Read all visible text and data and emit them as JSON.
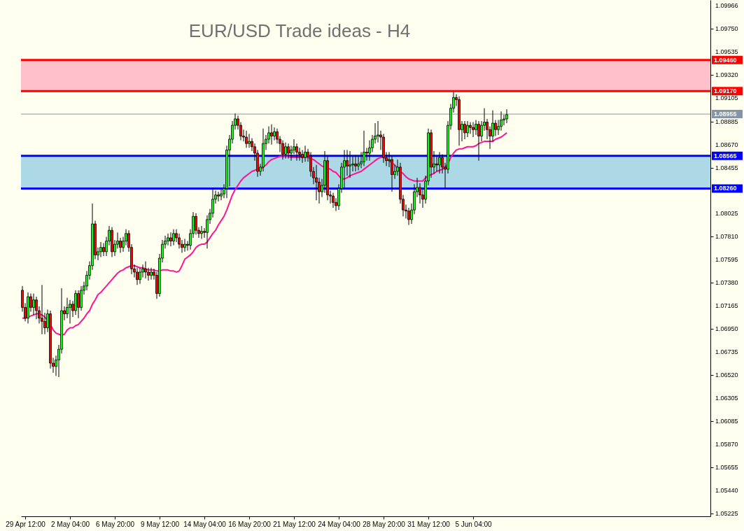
{
  "chart_data": {
    "type": "candlestick",
    "title": "EUR/USD Trade ideas - H4",
    "categories": [
      null,
      "29 Apr 12:00",
      null,
      null,
      null,
      null,
      null,
      null,
      null,
      null,
      null,
      null,
      null,
      null,
      null,
      null,
      null,
      "2 May 04:00",
      null,
      null,
      null,
      null,
      null,
      null,
      null,
      null,
      null,
      null,
      null,
      null,
      null,
      null,
      null,
      "6 May 20:00",
      null,
      null,
      null,
      null,
      null,
      null,
      null,
      null,
      null,
      null,
      null,
      null,
      null,
      null,
      null,
      "9 May 12:00",
      null,
      null,
      null,
      null,
      null,
      null,
      null,
      null,
      null,
      null,
      null,
      null,
      null,
      null,
      null,
      "14 May 04:00",
      null,
      null,
      null,
      null,
      null,
      null,
      null,
      null,
      null,
      null,
      null,
      null,
      null,
      null,
      null,
      "16 May 20:00",
      null,
      null,
      null,
      null,
      null,
      null,
      null,
      null,
      null,
      null,
      null,
      null,
      null,
      null,
      null,
      "21 May 12:00",
      null,
      null,
      null,
      null,
      null,
      null,
      null,
      null,
      null,
      null,
      null,
      null,
      null,
      null,
      null,
      "24 May 04:00",
      null,
      null,
      null,
      null,
      null,
      null,
      null,
      null,
      null,
      null,
      null,
      null,
      null,
      null,
      null,
      "28 May 20:00",
      null,
      null,
      null,
      null,
      null,
      null,
      null,
      null,
      null,
      null,
      null,
      null,
      null,
      null,
      null,
      "31 May 12:00",
      null,
      null,
      null,
      null,
      null,
      null,
      null,
      null,
      null,
      null,
      null,
      null,
      null,
      null,
      null,
      "5 Jun 04:00",
      null,
      null,
      null,
      null,
      null,
      null,
      null,
      null,
      null,
      null,
      null,
      null
    ],
    "ohlc": [
      [
        1.0731,
        1.0735,
        1.0711,
        1.0715
      ],
      [
        1.0715,
        1.0719,
        1.0702,
        1.0705
      ],
      [
        1.0705,
        1.0729,
        1.07,
        1.0725
      ],
      [
        1.0725,
        1.0728,
        1.0711,
        1.0715
      ],
      [
        1.0715,
        1.0728,
        1.0708,
        1.0722
      ],
      [
        1.0722,
        1.0725,
        1.0704,
        1.0712
      ],
      [
        1.0712,
        1.0716,
        1.07,
        1.0705
      ],
      [
        1.0705,
        1.0736,
        1.069,
        1.0702
      ],
      [
        1.0702,
        1.071,
        1.069,
        1.0696
      ],
      [
        1.0696,
        1.0713,
        1.0692,
        1.0709
      ],
      [
        1.0709,
        1.0712,
        1.0658,
        1.0663
      ],
      [
        1.0663,
        1.0668,
        1.0654,
        1.066
      ],
      [
        1.066,
        1.067,
        1.0651,
        1.0666
      ],
      [
        1.0666,
        1.068,
        1.065,
        1.0676
      ],
      [
        1.0676,
        1.0733,
        1.0672,
        1.0712
      ],
      [
        1.0712,
        1.0716,
        1.0703,
        1.0709
      ],
      [
        1.0709,
        1.0724,
        1.0705,
        1.0715
      ],
      [
        1.0715,
        1.0722,
        1.07,
        1.0718
      ],
      [
        1.0718,
        1.0721,
        1.0706,
        1.0712
      ],
      [
        1.0712,
        1.0731,
        1.0708,
        1.0728
      ],
      [
        1.0728,
        1.0731,
        1.0705,
        1.0715
      ],
      [
        1.0715,
        1.0735,
        1.0712,
        1.0731
      ],
      [
        1.0731,
        1.0739,
        1.0727,
        1.0735
      ],
      [
        1.0735,
        1.0749,
        1.0731,
        1.0745
      ],
      [
        1.0745,
        1.0758,
        1.0741,
        1.0754
      ],
      [
        1.0754,
        1.0812,
        1.075,
        1.0793
      ],
      [
        1.0793,
        1.0796,
        1.076,
        1.0764
      ],
      [
        1.0764,
        1.0771,
        1.0759,
        1.0767
      ],
      [
        1.0767,
        1.0776,
        1.0762,
        1.0771
      ],
      [
        1.0771,
        1.0775,
        1.0763,
        1.0767
      ],
      [
        1.0767,
        1.0781,
        1.0763,
        1.0777
      ],
      [
        1.0777,
        1.0791,
        1.0773,
        1.0787
      ],
      [
        1.0787,
        1.079,
        1.0762,
        1.0767
      ],
      [
        1.0767,
        1.0778,
        1.0763,
        1.0774
      ],
      [
        1.0774,
        1.0785,
        1.077,
        1.0777
      ],
      [
        1.0777,
        1.078,
        1.0766,
        1.0771
      ],
      [
        1.0771,
        1.0781,
        1.0767,
        1.0777
      ],
      [
        1.0777,
        1.0788,
        1.0773,
        1.0784
      ],
      [
        1.0784,
        1.0787,
        1.0767,
        1.0771
      ],
      [
        1.0771,
        1.0774,
        1.0746,
        1.0751
      ],
      [
        1.0751,
        1.0755,
        1.0743,
        1.0748
      ],
      [
        1.0748,
        1.0752,
        1.0736,
        1.0741
      ],
      [
        1.0741,
        1.0752,
        1.0737,
        1.0748
      ],
      [
        1.0748,
        1.0755,
        1.0743,
        1.0751
      ],
      [
        1.0751,
        1.0758,
        1.0742,
        1.0748
      ],
      [
        1.0748,
        1.0752,
        1.074,
        1.0745
      ],
      [
        1.0745,
        1.0752,
        1.0741,
        1.0748
      ],
      [
        1.0748,
        1.0751,
        1.0741,
        1.0745
      ],
      [
        1.0745,
        1.0748,
        1.0723,
        1.0728
      ],
      [
        1.0728,
        1.0765,
        1.0725,
        1.0761
      ],
      [
        1.0761,
        1.0778,
        1.0757,
        1.0774
      ],
      [
        1.0774,
        1.0782,
        1.077,
        1.0777
      ],
      [
        1.0777,
        1.0784,
        1.0773,
        1.078
      ],
      [
        1.078,
        1.0785,
        1.0772,
        1.0777
      ],
      [
        1.0777,
        1.0788,
        1.0773,
        1.0784
      ],
      [
        1.0784,
        1.0788,
        1.0776,
        1.078
      ],
      [
        1.078,
        1.0784,
        1.077,
        1.0774
      ],
      [
        1.0774,
        1.0778,
        1.0766,
        1.0771
      ],
      [
        1.0771,
        1.0779,
        1.0767,
        1.0774
      ],
      [
        1.0774,
        1.0777,
        1.0768,
        1.0773
      ],
      [
        1.0773,
        1.0788,
        1.0769,
        1.0784
      ],
      [
        1.0784,
        1.0804,
        1.078,
        1.08
      ],
      [
        1.08,
        1.0803,
        1.0783,
        1.0787
      ],
      [
        1.0787,
        1.079,
        1.078,
        1.0784
      ],
      [
        1.0784,
        1.0791,
        1.0779,
        1.0786
      ],
      [
        1.0786,
        1.0789,
        1.078,
        1.0785
      ],
      [
        1.0785,
        1.0801,
        1.077,
        1.0797
      ],
      [
        1.0797,
        1.0807,
        1.0793,
        1.0803
      ],
      [
        1.0803,
        1.0826,
        1.0799,
        1.0816
      ],
      [
        1.0816,
        1.0824,
        1.0812,
        1.082
      ],
      [
        1.082,
        1.0823,
        1.0814,
        1.0819
      ],
      [
        1.0819,
        1.0825,
        1.0815,
        1.0821
      ],
      [
        1.0821,
        1.083,
        1.0817,
        1.0826
      ],
      [
        1.0826,
        1.0866,
        1.0817,
        1.0862
      ],
      [
        1.0862,
        1.0876,
        1.0828,
        1.0872
      ],
      [
        1.0872,
        1.0889,
        1.0868,
        1.0885
      ],
      [
        1.0885,
        1.0896,
        1.0881,
        1.0891
      ],
      [
        1.0891,
        1.0894,
        1.0881,
        1.0885
      ],
      [
        1.0885,
        1.0888,
        1.0871,
        1.0875
      ],
      [
        1.0875,
        1.0881,
        1.087,
        1.0874
      ],
      [
        1.0874,
        1.088,
        1.0864,
        1.0868
      ],
      [
        1.0868,
        1.0877,
        1.0864,
        1.087
      ],
      [
        1.087,
        1.0873,
        1.0861,
        1.0865
      ],
      [
        1.0865,
        1.0868,
        1.0852,
        1.0859
      ],
      [
        1.0859,
        1.0862,
        1.0837,
        1.0842
      ],
      [
        1.0842,
        1.0849,
        1.0838,
        1.0846
      ],
      [
        1.0846,
        1.0882,
        1.0842,
        1.0868
      ],
      [
        1.0868,
        1.0876,
        1.0862,
        1.0872
      ],
      [
        1.0872,
        1.0884,
        1.0868,
        1.0878
      ],
      [
        1.0878,
        1.0886,
        1.0867,
        1.0875
      ],
      [
        1.0875,
        1.0883,
        1.0871,
        1.0879
      ],
      [
        1.0879,
        1.0882,
        1.0868,
        1.0872
      ],
      [
        1.0872,
        1.0875,
        1.086,
        1.0868
      ],
      [
        1.0868,
        1.0871,
        1.0853,
        1.0858
      ],
      [
        1.0858,
        1.0869,
        1.0854,
        1.0865
      ],
      [
        1.0865,
        1.0868,
        1.0854,
        1.0859
      ],
      [
        1.0859,
        1.0866,
        1.0852,
        1.0862
      ],
      [
        1.0862,
        1.0872,
        1.0858,
        1.0865
      ],
      [
        1.0865,
        1.0868,
        1.0852,
        1.086
      ],
      [
        1.086,
        1.0864,
        1.0852,
        1.0858
      ],
      [
        1.0858,
        1.0862,
        1.085,
        1.0855
      ],
      [
        1.0855,
        1.0866,
        1.0851,
        1.086
      ],
      [
        1.086,
        1.0863,
        1.0851,
        1.0856
      ],
      [
        1.0856,
        1.086,
        1.0837,
        1.0842
      ],
      [
        1.0842,
        1.0846,
        1.083,
        1.0836
      ],
      [
        1.0836,
        1.0848,
        1.0815,
        1.0832
      ],
      [
        1.0832,
        1.0836,
        1.0812,
        1.0823
      ],
      [
        1.0823,
        1.0835,
        1.0818,
        1.0829
      ],
      [
        1.0829,
        1.0861,
        1.0822,
        1.0852
      ],
      [
        1.0852,
        1.0856,
        1.0815,
        1.082
      ],
      [
        1.082,
        1.0824,
        1.0812,
        1.0819
      ],
      [
        1.0819,
        1.0822,
        1.0808,
        1.0813
      ],
      [
        1.0813,
        1.0817,
        1.0805,
        1.081
      ],
      [
        1.081,
        1.083,
        1.0806,
        1.0826
      ],
      [
        1.0826,
        1.085,
        1.0822,
        1.0846
      ],
      [
        1.0846,
        1.0862,
        1.0826,
        1.0852
      ],
      [
        1.0852,
        1.0862,
        1.0838,
        1.0847
      ],
      [
        1.0847,
        1.0861,
        1.0836,
        1.0848
      ],
      [
        1.0848,
        1.0856,
        1.0842,
        1.0849
      ],
      [
        1.0849,
        1.0857,
        1.0842,
        1.0847
      ],
      [
        1.0847,
        1.0856,
        1.0843,
        1.0849
      ],
      [
        1.0849,
        1.086,
        1.0845,
        1.0851
      ],
      [
        1.0851,
        1.088,
        1.0847,
        1.086
      ],
      [
        1.086,
        1.0864,
        1.0852,
        1.0859
      ],
      [
        1.0859,
        1.0871,
        1.0852,
        1.0864
      ],
      [
        1.0864,
        1.0876,
        1.086,
        1.0872
      ],
      [
        1.0872,
        1.0887,
        1.0868,
        1.0875
      ],
      [
        1.0875,
        1.0889,
        1.0869,
        1.0876
      ],
      [
        1.0876,
        1.088,
        1.0862,
        1.0874
      ],
      [
        1.0874,
        1.0877,
        1.085,
        1.0855
      ],
      [
        1.0855,
        1.086,
        1.0847,
        1.0852
      ],
      [
        1.0852,
        1.086,
        1.0846,
        1.0853
      ],
      [
        1.0853,
        1.0856,
        1.0823,
        1.0839
      ],
      [
        1.0839,
        1.0848,
        1.0835,
        1.0842
      ],
      [
        1.0842,
        1.0853,
        1.0838,
        1.0846
      ],
      [
        1.0846,
        1.085,
        1.0812,
        1.0816
      ],
      [
        1.0816,
        1.082,
        1.08,
        1.0806
      ],
      [
        1.0806,
        1.0811,
        1.0798,
        1.0805
      ],
      [
        1.0805,
        1.0808,
        1.0792,
        1.0797
      ],
      [
        1.0797,
        1.0812,
        1.0793,
        1.0806
      ],
      [
        1.0806,
        1.083,
        1.0802,
        1.0823
      ],
      [
        1.0823,
        1.0836,
        1.0818,
        1.0827
      ],
      [
        1.0827,
        1.0831,
        1.0812,
        1.082
      ],
      [
        1.082,
        1.0826,
        1.0808,
        1.0816
      ],
      [
        1.0816,
        1.0838,
        1.0812,
        1.0833
      ],
      [
        1.0833,
        1.0882,
        1.0829,
        1.0878
      ],
      [
        1.0878,
        1.0881,
        1.0836,
        1.0846
      ],
      [
        1.0846,
        1.0861,
        1.084,
        1.0849
      ],
      [
        1.0849,
        1.0856,
        1.0842,
        1.0848
      ],
      [
        1.0848,
        1.086,
        1.084,
        1.0855
      ],
      [
        1.0855,
        1.0858,
        1.084,
        1.0846
      ],
      [
        1.0846,
        1.085,
        1.0826,
        1.0844
      ],
      [
        1.0844,
        1.0889,
        1.084,
        1.0885
      ],
      [
        1.0885,
        1.0905,
        1.0881,
        1.0901
      ],
      [
        1.0901,
        1.0916,
        1.0897,
        1.0911
      ],
      [
        1.0911,
        1.0914,
        1.0903,
        1.0909
      ],
      [
        1.0909,
        1.0912,
        1.0866,
        1.0881
      ],
      [
        1.0881,
        1.0889,
        1.087,
        1.0886
      ],
      [
        1.0886,
        1.0889,
        1.0872,
        1.0878
      ],
      [
        1.0878,
        1.0889,
        1.0874,
        1.0885
      ],
      [
        1.0885,
        1.0888,
        1.0877,
        1.0883
      ],
      [
        1.0883,
        1.0888,
        1.0874,
        1.0881
      ],
      [
        1.0881,
        1.089,
        1.0876,
        1.0886
      ],
      [
        1.0886,
        1.0889,
        1.0852,
        1.0875
      ],
      [
        1.0875,
        1.0889,
        1.087,
        1.0885
      ],
      [
        1.0885,
        1.0901,
        1.088,
        1.0888
      ],
      [
        1.0888,
        1.0891,
        1.0872,
        1.0881
      ],
      [
        1.0881,
        1.0884,
        1.0863,
        1.0875
      ],
      [
        1.0875,
        1.0899,
        1.087,
        1.0887
      ],
      [
        1.0887,
        1.089,
        1.0875,
        1.0881
      ],
      [
        1.0881,
        1.089,
        1.0876,
        1.0884
      ],
      [
        1.0884,
        1.0898,
        1.088,
        1.089
      ],
      [
        1.089,
        1.0895,
        1.0885,
        1.0891
      ],
      [
        1.0891,
        1.09,
        1.0887,
        1.0895
      ]
    ],
    "colors": [
      "#ff0000",
      "#ff0000",
      "#00ff00",
      "#ff0000",
      "#00ff00",
      "#ff0000",
      "#ff0000",
      "#ff0000",
      "#ff0000",
      "#00ff00",
      "#ff0000",
      "#ff0000",
      "#00ff00",
      "#00ff00",
      "#00ff00",
      "#ff0000",
      "#00ff00",
      "#00ff00",
      "#ff0000",
      "#00ff00",
      "#ff0000",
      "#00ff00",
      "#00ff00",
      "#00ff00",
      "#00ff00",
      "#00ff00",
      "#ff0000",
      "#00ff00",
      "#00ff00",
      "#ff0000",
      "#00ff00",
      "#00ff00",
      "#ff0000",
      "#00ff00",
      "#00ff00",
      "#ff0000",
      "#00ff00",
      "#00ff00",
      "#ff0000",
      "#ff0000",
      "#ff0000",
      "#ff0000",
      "#00ff00",
      "#00ff00",
      "#ff0000",
      "#ff0000",
      "#00ff00",
      "#ff0000",
      "#ff0000",
      "#00ff00",
      "#00ff00",
      "#00ff00",
      "#00ff00",
      "#ff0000",
      "#00ff00",
      "#ff0000",
      "#ff0000",
      "#ff0000",
      "#00ff00",
      "#ff0000",
      "#00ff00",
      "#00ff00",
      "#ff0000",
      "#ff0000",
      "#00ff00",
      "#ff0000",
      "#00ff00",
      "#00ff00",
      "#00ff00",
      "#00ff00",
      "#ff0000",
      "#00ff00",
      "#00ff00",
      "#00ff00",
      "#00ff00",
      "#00ff00",
      "#00ff00",
      "#ff0000",
      "#ff0000",
      "#ff0000",
      "#ff0000",
      "#00ff00",
      "#ff0000",
      "#ff0000",
      "#ff0000",
      "#00ff00",
      "#00ff00",
      "#00ff00",
      "#00ff00",
      "#ff0000",
      "#00ff00",
      "#ff0000",
      "#ff0000",
      "#ff0000",
      "#00ff00",
      "#ff0000",
      "#00ff00",
      "#00ff00",
      "#ff0000",
      "#ff0000",
      "#ff0000",
      "#00ff00",
      "#ff0000",
      "#ff0000",
      "#ff0000",
      "#ff0000",
      "#ff0000",
      "#00ff00",
      "#00ff00",
      "#ff0000",
      "#ff0000",
      "#ff0000",
      "#ff0000",
      "#00ff00",
      "#00ff00",
      "#00ff00",
      "#ff0000",
      "#00ff00",
      "#00ff00",
      "#ff0000",
      "#00ff00",
      "#00ff00",
      "#00ff00",
      "#ff0000",
      "#00ff00",
      "#00ff00",
      "#00ff00",
      "#00ff00",
      "#ff0000",
      "#ff0000",
      "#ff0000",
      "#00ff00",
      "#ff0000",
      "#00ff00",
      "#00ff00",
      "#ff0000",
      "#ff0000",
      "#ff0000",
      "#ff0000",
      "#00ff00",
      "#00ff00",
      "#00ff00",
      "#ff0000",
      "#ff0000",
      "#00ff00",
      "#00ff00",
      "#ff0000",
      "#00ff00",
      "#ff0000",
      "#00ff00",
      "#ff0000",
      "#ff0000",
      "#00ff00",
      "#00ff00",
      "#00ff00",
      "#ff0000",
      "#ff0000",
      "#00ff00",
      "#ff0000",
      "#00ff00",
      "#ff0000",
      "#ff0000",
      "#00ff00",
      "#ff0000",
      "#00ff00",
      "#00ff00",
      "#ff0000",
      "#ff0000",
      "#00ff00",
      "#ff0000",
      "#00ff00",
      "#00ff00",
      "#00ff00",
      "#00ff00"
    ],
    "series": [
      {
        "type": "line",
        "color": "#ff1493",
        "values": [
          1.0705,
          1.0705,
          1.0706,
          1.0707,
          1.0708,
          1.0709,
          1.0709,
          1.0708,
          1.0706,
          1.0703,
          1.0699,
          1.0694,
          1.0691,
          1.069,
          1.0689,
          1.069,
          1.0694,
          1.0696,
          1.0696,
          1.0698,
          1.0699,
          1.0702,
          1.0705,
          1.0709,
          1.0712,
          1.0718,
          1.0722,
          1.0727,
          1.0729,
          1.0732,
          1.0735,
          1.0738,
          1.0741,
          1.0744,
          1.0747,
          1.0749,
          1.075,
          1.0752,
          1.0753,
          1.0754,
          1.0754,
          1.0753,
          1.0752,
          1.0752,
          1.0751,
          1.075,
          1.075,
          1.075,
          1.0749,
          1.0749,
          1.075,
          1.075,
          1.075,
          1.0749,
          1.0749,
          1.0748,
          1.0749,
          1.0754,
          1.076,
          1.0762,
          1.0764,
          1.0767,
          1.0771,
          1.0773,
          1.0774,
          1.0774,
          1.0776,
          1.078,
          1.0784,
          1.0787,
          1.0792,
          1.0796,
          1.08,
          1.0806,
          1.0813,
          1.082,
          1.0825,
          1.0829,
          1.0833,
          1.0836,
          1.0838,
          1.084,
          1.0842,
          1.0843,
          1.0844,
          1.0844,
          1.0846,
          1.0848,
          1.0851,
          1.0853,
          1.0854,
          1.0855,
          1.0856,
          1.0856,
          1.0856,
          1.0856,
          1.0855,
          1.0855,
          1.0855,
          1.0855,
          1.0855,
          1.0855,
          1.0855,
          1.0854,
          1.0853,
          1.0851,
          1.0849,
          1.0847,
          1.0846,
          1.0845,
          1.0844,
          1.0842,
          1.0841,
          1.0838,
          1.0835,
          1.0835,
          1.0836,
          1.0838,
          1.0839,
          1.084,
          1.0841,
          1.0842,
          1.0844,
          1.0846,
          1.0848,
          1.085,
          1.0852,
          1.0854,
          1.0855,
          1.0855,
          1.0854,
          1.0852,
          1.085,
          1.0848,
          1.0845,
          1.0842,
          1.084,
          1.0837,
          1.0835,
          1.0834,
          1.0833,
          1.0833,
          1.0833,
          1.0833,
          1.0836,
          1.0838,
          1.0839,
          1.084,
          1.0842,
          1.0843,
          1.0844,
          1.0846,
          1.0849,
          1.0855,
          1.0859,
          1.0862,
          1.0863,
          1.0863,
          1.0864,
          1.0865,
          1.0865,
          1.0865,
          1.0866,
          1.0868,
          1.0869,
          1.087,
          1.087,
          1.087,
          1.087,
          1.0872,
          1.0873,
          1.0874,
          1.0876,
          1.0878
        ]
      }
    ],
    "ylim": [
      1.052,
      1.1002
    ],
    "yticks": [
      {
        "value": 1.09966,
        "label": "1.09966"
      },
      {
        "value": 1.0975,
        "label": "1.09750"
      },
      {
        "value": 1.09535,
        "label": "1.09535"
      },
      {
        "value": 1.0932,
        "label": "1.09320"
      },
      {
        "value": 1.09105,
        "label": "1.09105"
      },
      {
        "value": 1.08885,
        "label": "1.08885"
      },
      {
        "value": 1.0867,
        "label": "1.08670"
      },
      {
        "value": 1.08455,
        "label": "1.08455"
      },
      {
        "value": 1.08025,
        "label": "1.08025"
      },
      {
        "value": 1.0781,
        "label": "1.07810"
      },
      {
        "value": 1.07595,
        "label": "1.07595"
      },
      {
        "value": 1.0738,
        "label": "1.07380"
      },
      {
        "value": 1.07165,
        "label": "1.07165"
      },
      {
        "value": 1.0695,
        "label": "1.06950"
      },
      {
        "value": 1.06735,
        "label": "1.06735"
      },
      {
        "value": 1.0652,
        "label": "1.06520"
      },
      {
        "value": 1.06305,
        "label": "1.06305"
      },
      {
        "value": 1.06085,
        "label": "1.06085"
      },
      {
        "value": 1.0587,
        "label": "1.05870"
      },
      {
        "value": 1.05655,
        "label": "1.05655"
      },
      {
        "value": 1.0544,
        "label": "1.05440"
      },
      {
        "value": 1.05225,
        "label": "1.05225"
      }
    ],
    "bands": [
      {
        "axis": "y",
        "from": 1.0917,
        "to": 1.0946,
        "color": "#ffc0cb"
      },
      {
        "axis": "y",
        "from": 1.0826,
        "to": 1.08565,
        "color": "#add8e6"
      }
    ],
    "ref_lines": [
      {
        "axis": "y",
        "value": 1.0946,
        "label": "1.09460",
        "color": "#ff0000"
      },
      {
        "axis": "y",
        "value": 1.0917,
        "label": "1.09170",
        "color": "#ff0000"
      },
      {
        "axis": "y",
        "value": 1.08955,
        "label": "1.08955",
        "color": "#8595a5"
      },
      {
        "axis": "y",
        "value": 1.08565,
        "label": "1.08565",
        "color": "#0000ff"
      },
      {
        "axis": "y",
        "value": 1.0826,
        "label": "1.08260",
        "color": "#0000ff"
      }
    ]
  }
}
